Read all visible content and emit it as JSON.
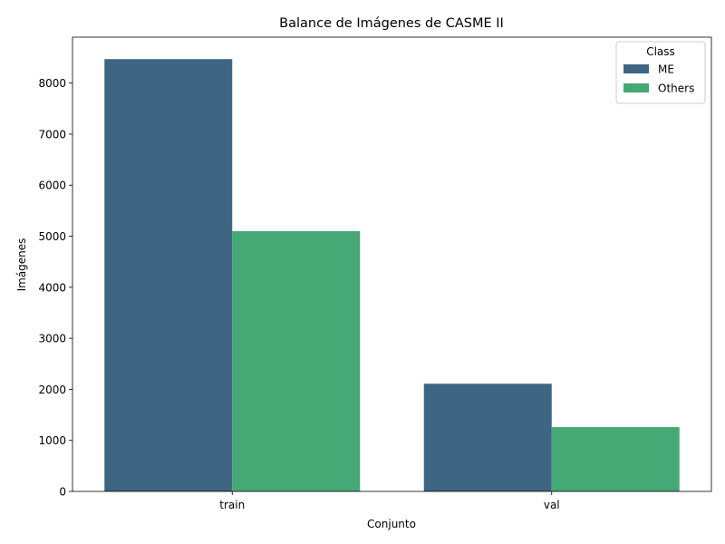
{
  "chart_data": {
    "type": "bar",
    "title": "Balance de Imágenes de CASME II",
    "xlabel": "Conjunto",
    "ylabel": "Imágenes",
    "categories": [
      "train",
      "val"
    ],
    "series": [
      {
        "name": "ME",
        "values": [
          8470,
          2110
        ],
        "color": "#3e6582"
      },
      {
        "name": "Others",
        "values": [
          5100,
          1260
        ],
        "color": "#46a875"
      }
    ],
    "ylim": [
      0,
      8900
    ],
    "yticks": [
      0,
      1000,
      2000,
      3000,
      4000,
      5000,
      6000,
      7000,
      8000
    ],
    "grid": false,
    "legend": {
      "title": "Class",
      "placement": "top-right"
    }
  }
}
